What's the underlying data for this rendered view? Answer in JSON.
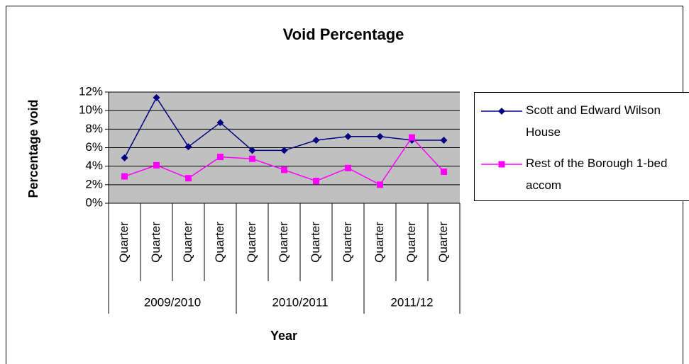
{
  "chart_data": {
    "type": "line",
    "title": "Void Percentage",
    "y_label": "Percentage void",
    "x_label": "Year",
    "category_groups": [
      {
        "name": "2009/2010",
        "categories": [
          "Quarter",
          "Quarter",
          "Quarter",
          "Quarter"
        ]
      },
      {
        "name": "2010/2011",
        "categories": [
          "Quarter",
          "Quarter",
          "Quarter",
          "Quarter"
        ]
      },
      {
        "name": "2011/12",
        "categories": [
          "Quarter",
          "Quarter",
          "Quarter"
        ]
      }
    ],
    "series": [
      {
        "name": "Scott and Edward Wilson House",
        "color": "#000080",
        "marker": "diamond",
        "values": [
          4.9,
          11.4,
          6.1,
          8.7,
          5.7,
          5.7,
          6.8,
          7.2,
          7.2,
          6.8,
          6.8
        ]
      },
      {
        "name": "Rest of the Borough 1-bed accom",
        "color": "#ff00ff",
        "marker": "square",
        "values": [
          2.9,
          4.1,
          2.7,
          5.0,
          4.8,
          3.6,
          2.4,
          3.8,
          2.0,
          7.1,
          3.4
        ]
      }
    ],
    "ylim": [
      0,
      12
    ],
    "yticks": [
      {
        "value": 0,
        "label": "0%"
      },
      {
        "value": 2,
        "label": "2%"
      },
      {
        "value": 4,
        "label": "4%"
      },
      {
        "value": 6,
        "label": "6%"
      },
      {
        "value": 8,
        "label": "8%"
      },
      {
        "value": 10,
        "label": "10%"
      },
      {
        "value": 12,
        "label": "12%"
      }
    ],
    "grid": true,
    "plot_background": "#c0c0c0",
    "legend": "right"
  }
}
